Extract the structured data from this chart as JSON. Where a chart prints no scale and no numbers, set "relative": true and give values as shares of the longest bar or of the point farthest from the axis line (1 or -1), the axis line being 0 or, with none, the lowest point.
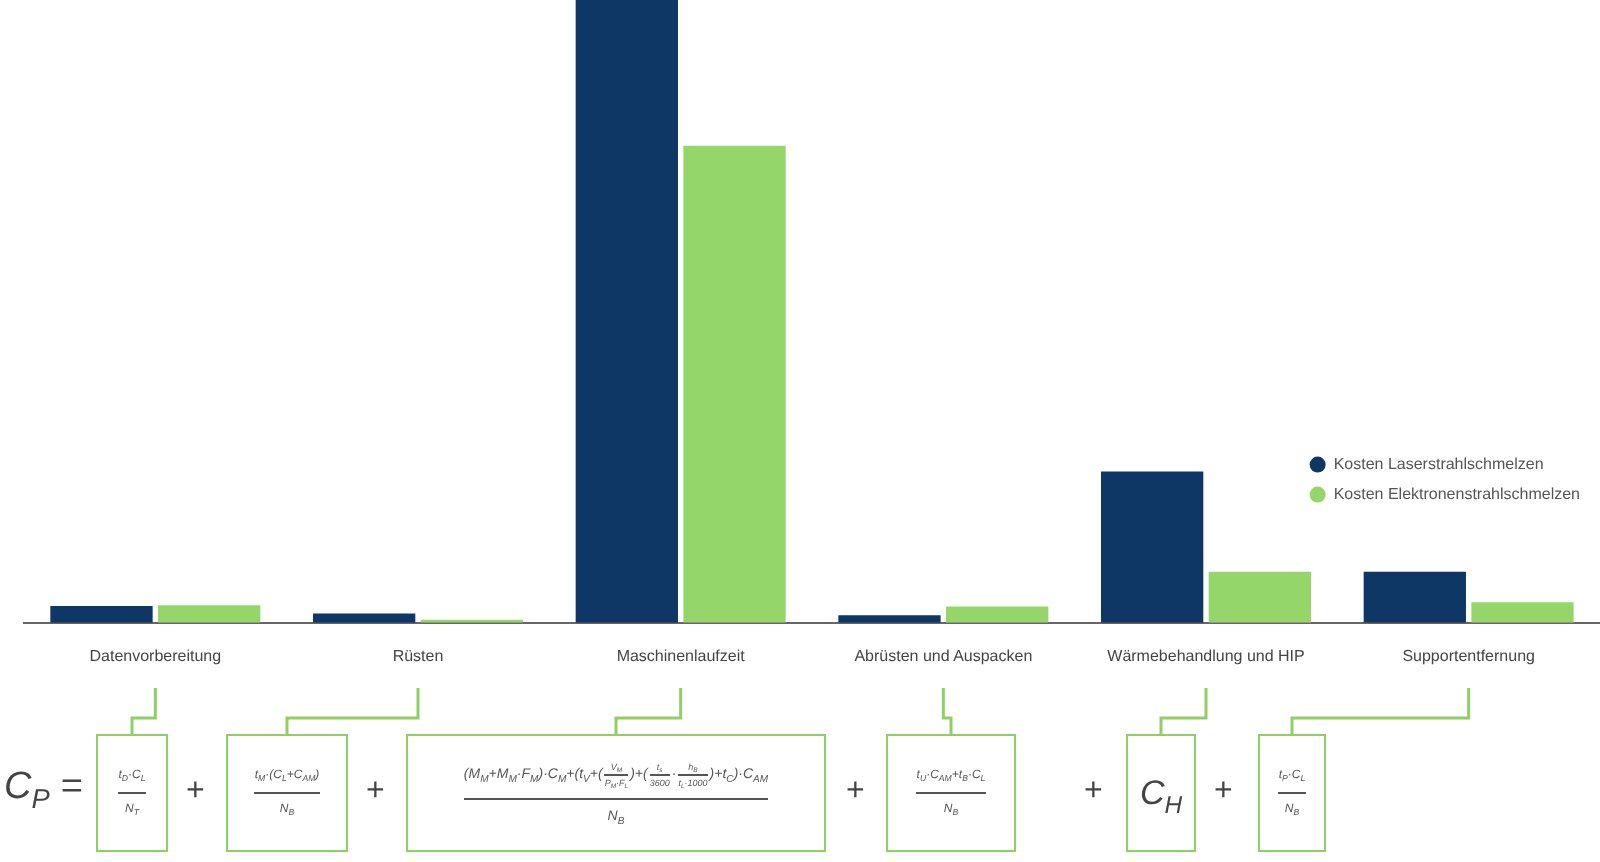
{
  "chart_data": {
    "type": "bar",
    "relative": true,
    "categories": [
      "Datenvorbereitung",
      "Rüsten",
      "Maschinenlaufzeit",
      "Abrüsten und Auspacken",
      "Wärmebehandlung und HIP",
      "Supportentfernung"
    ],
    "series": [
      {
        "name": "Kosten Laserstrahlschmelzen",
        "color": "#0e3765",
        "values": [
          0.027,
          0.015,
          1,
          0.012,
          0.243,
          0.082
        ]
      },
      {
        "name": "Kosten Elektronenstrahlschmelzen",
        "color": "#95d66b",
        "values": [
          0.028,
          0.005,
          0.766,
          0.026,
          0.082,
          0.033
        ]
      }
    ],
    "legend": "right",
    "annotations": [
      "C$_{P}$ =",
      "t$_{D}$·C$_{L}$",
      "N$_{T}$",
      "+",
      "t$_{M}$·(C$_{L}$+C$_{AM}$)",
      "N$_{B}$",
      "+",
      "(M$_{M}$+M$_{M}$·F$_{M}$)·C$_{M}$+(t$_{V}$+(",
      "V$_{M}$",
      "P$_{M}$·F$_{L}$",
      ")+(",
      "t$_{s}$",
      "3600",
      "·",
      "h$_{B}$",
      "t$_{L}$·1000",
      ")+t$_{C}$)·C$_{AM}$",
      "N$_{B}$",
      "+",
      "t$_{U}$·C$_{AM}$+t$_{B}$·C$_{L}$",
      "N$_{B}$",
      "+",
      "C$_{H}$",
      "+",
      "t$_{P}$·C$_{L}$",
      "N$_{B}$"
    ]
  }
}
